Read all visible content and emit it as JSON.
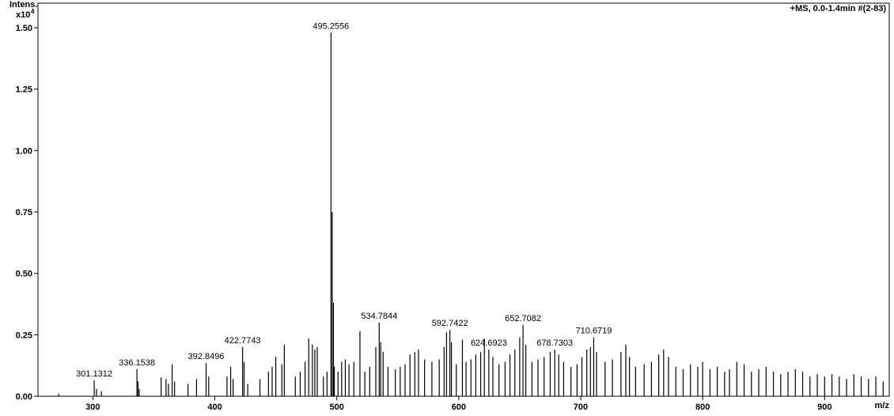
{
  "chart_data": {
    "type": "stick",
    "y_label": "Intens.",
    "y_scale": "x10",
    "y_scale_exp": "4",
    "x_label": "m/z",
    "header": "+MS, 0.0-1.4min #(2-83)",
    "xlim": [
      255,
      953
    ],
    "ylim": [
      0,
      1.6
    ],
    "xticks": [
      300,
      400,
      500,
      600,
      700,
      800,
      900
    ],
    "yticks": [
      {
        "value": 0,
        "label": "0.00"
      },
      {
        "value": 0.25,
        "label": "0.25"
      },
      {
        "value": 0.5,
        "label": "0.50"
      },
      {
        "value": 0.75,
        "label": "0.75"
      },
      {
        "value": 1,
        "label": "1.00"
      },
      {
        "value": 1.25,
        "label": "1.25"
      },
      {
        "value": 1.5,
        "label": "1.50"
      }
    ],
    "color": "#000000",
    "series": [
      {
        "name": "peaks",
        "x": [
          272,
          303,
          307,
          337,
          338,
          356,
          360,
          362,
          365,
          367,
          378,
          385,
          395,
          410,
          413,
          415,
          424,
          427,
          437,
          444,
          447,
          450,
          455,
          457,
          466,
          470,
          474,
          477,
          480,
          482,
          484,
          489,
          492,
          496.26,
          497.26,
          498,
          501,
          504,
          507,
          510,
          514,
          519,
          523,
          527,
          532,
          536,
          538,
          542,
          548,
          552,
          556,
          560,
          564,
          567,
          572,
          578,
          584,
          588,
          590,
          594,
          598,
          603,
          606,
          610,
          614,
          618,
          621,
          628,
          633,
          638,
          642,
          646,
          650,
          655,
          660,
          665,
          670,
          675,
          682,
          686,
          692,
          697,
          701,
          705,
          708,
          713,
          720,
          726,
          733,
          737,
          740,
          745,
          752,
          758,
          764,
          768,
          772,
          778,
          784,
          790,
          796,
          800,
          806,
          812,
          818,
          822,
          828,
          834,
          840,
          846,
          852,
          858,
          864,
          870,
          876,
          882,
          888,
          894,
          900,
          906,
          912,
          918,
          924,
          930,
          936,
          942,
          948
        ],
        "values": [
          0.01,
          0.03,
          0.02,
          0.06,
          0.03,
          0.077,
          0.07,
          0.05,
          0.13,
          0.06,
          0.05,
          0.07,
          0.08,
          0.08,
          0.12,
          0.07,
          0.14,
          0.05,
          0.07,
          0.1,
          0.12,
          0.16,
          0.13,
          0.21,
          0.08,
          0.1,
          0.14,
          0.235,
          0.21,
          0.19,
          0.2,
          0.08,
          0.1,
          0.75,
          0.38,
          0.12,
          0.1,
          0.14,
          0.15,
          0.13,
          0.14,
          0.265,
          0.1,
          0.12,
          0.2,
          0.22,
          0.18,
          0.12,
          0.11,
          0.12,
          0.13,
          0.17,
          0.18,
          0.19,
          0.15,
          0.14,
          0.15,
          0.2,
          0.26,
          0.22,
          0.13,
          0.23,
          0.14,
          0.15,
          0.17,
          0.18,
          0.235,
          0.16,
          0.13,
          0.14,
          0.17,
          0.19,
          0.24,
          0.21,
          0.14,
          0.15,
          0.16,
          0.18,
          0.17,
          0.14,
          0.12,
          0.13,
          0.16,
          0.19,
          0.2,
          0.18,
          0.14,
          0.15,
          0.18,
          0.21,
          0.16,
          0.12,
          0.13,
          0.14,
          0.17,
          0.19,
          0.16,
          0.12,
          0.11,
          0.13,
          0.12,
          0.14,
          0.11,
          0.12,
          0.1,
          0.11,
          0.14,
          0.13,
          0.1,
          0.11,
          0.12,
          0.1,
          0.09,
          0.1,
          0.11,
          0.1,
          0.08,
          0.09,
          0.08,
          0.09,
          0.08,
          0.07,
          0.09,
          0.08,
          0.07,
          0.08,
          0.06
        ]
      },
      {
        "name": "labeled peaks",
        "x": [
          301.1312,
          336.1538,
          392.8496,
          422.7743,
          495.2556,
          534.7844,
          592.7422,
          624.6923,
          652.7082,
          678.7303,
          710.6719
        ],
        "values": [
          0.064,
          0.11,
          0.135,
          0.2,
          1.48,
          0.3,
          0.27,
          0.19,
          0.29,
          0.19,
          0.24
        ]
      }
    ]
  }
}
